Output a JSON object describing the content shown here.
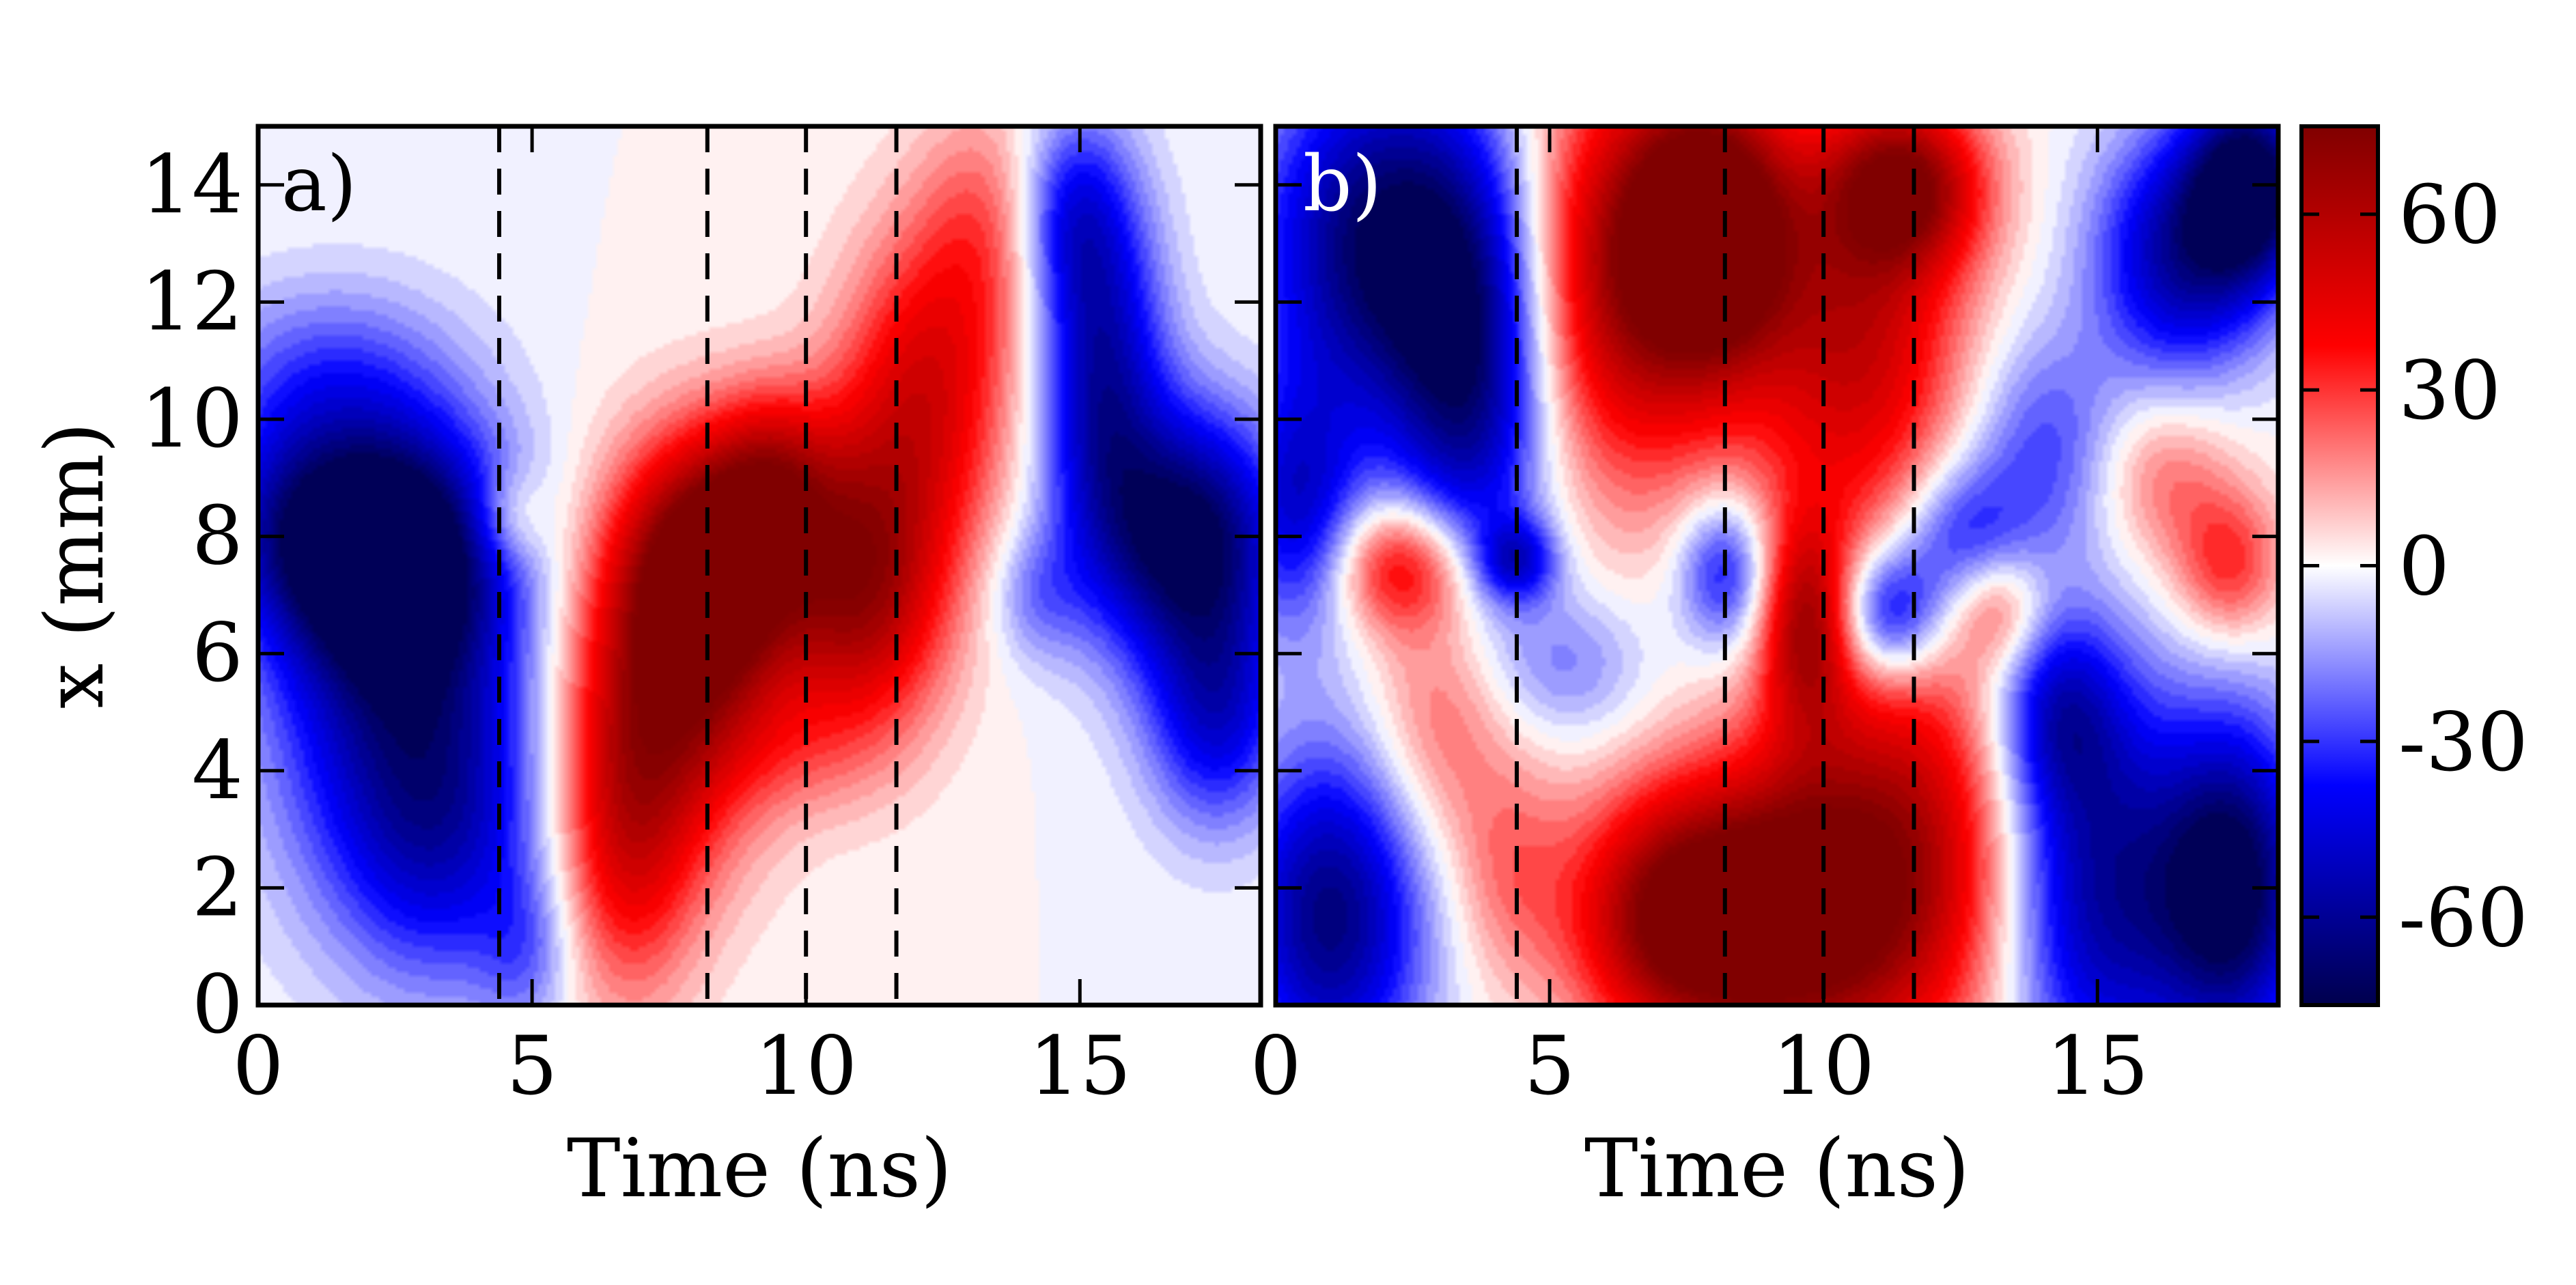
{
  "chart_data": [
    {
      "type": "heatmap",
      "panel_label": "a)",
      "xlabel": "Time (ns)",
      "ylabel": "x (mm)",
      "xlim": [
        0,
        18.3
      ],
      "ylim": [
        0,
        15
      ],
      "xticks": [
        "0",
        "5",
        "10",
        "15"
      ],
      "yticks": [
        "0",
        "2",
        "4",
        "6",
        "8",
        "10",
        "12",
        "14"
      ],
      "dashed_lines_ns": [
        4.4,
        8.2,
        10.0,
        11.65
      ],
      "features": [
        {
          "t": 0.4,
          "x": 8.2,
          "sx": 0.9,
          "sy": 1.2,
          "v": -25
        },
        {
          "t": 2.3,
          "x": 7.8,
          "sx": 1.4,
          "sy": 1.4,
          "v": -75
        },
        {
          "t": 2.6,
          "x": 5.5,
          "sx": 1.7,
          "sy": 2.6,
          "v": -55
        },
        {
          "t": 3.4,
          "x": 2.8,
          "sx": 1.3,
          "sy": 1.8,
          "v": -30
        },
        {
          "t": 1.2,
          "x": 10.6,
          "sx": 1.6,
          "sy": 1.2,
          "v": -25
        },
        {
          "t": 4.9,
          "x": 0.9,
          "sx": 0.6,
          "sy": 1.0,
          "v": -18
        },
        {
          "t": 4.6,
          "x": 8.3,
          "sx": 0.5,
          "sy": 0.6,
          "v": 20
        },
        {
          "t": 6.7,
          "x": 2.8,
          "sx": 0.9,
          "sy": 2.0,
          "v": 38
        },
        {
          "t": 7.5,
          "x": 5.5,
          "sx": 1.3,
          "sy": 2.2,
          "v": 55
        },
        {
          "t": 8.3,
          "x": 7.5,
          "sx": 1.1,
          "sy": 1.5,
          "v": 75
        },
        {
          "t": 9.4,
          "x": 9.0,
          "sx": 0.8,
          "sy": 1.1,
          "v": 35
        },
        {
          "t": 11.0,
          "x": 7.2,
          "sx": 1.1,
          "sy": 1.8,
          "v": 65
        },
        {
          "t": 12.2,
          "x": 10.5,
          "sx": 1.1,
          "sy": 1.9,
          "v": 45
        },
        {
          "t": 13.3,
          "x": 13.3,
          "sx": 0.9,
          "sy": 1.5,
          "v": 22
        },
        {
          "t": 9.6,
          "x": 4.3,
          "sx": 1.2,
          "sy": 0.8,
          "v": 10
        },
        {
          "t": 14.2,
          "x": 7.0,
          "sx": 0.6,
          "sy": 0.8,
          "v": -18
        },
        {
          "t": 15.4,
          "x": 10.8,
          "sx": 0.8,
          "sy": 2.2,
          "v": -55
        },
        {
          "t": 17.0,
          "x": 8.0,
          "sx": 1.2,
          "sy": 1.5,
          "v": -75
        },
        {
          "t": 17.5,
          "x": 5.0,
          "sx": 0.9,
          "sy": 1.4,
          "v": -45
        },
        {
          "t": 14.8,
          "x": 13.5,
          "sx": 0.7,
          "sy": 1.2,
          "v": -32
        }
      ]
    },
    {
      "type": "heatmap",
      "panel_label": "b)",
      "xlabel": "Time (ns)",
      "ylabel": "",
      "xlim": [
        0,
        18.3
      ],
      "ylim": [
        0,
        15
      ],
      "xticks": [
        "0",
        "5",
        "10",
        "15"
      ],
      "yticks": [],
      "dashed_lines_ns": [
        4.4,
        8.2,
        10.0,
        11.65
      ],
      "features": [
        {
          "t": 2.0,
          "x": 13.0,
          "sx": 1.6,
          "sy": 2.2,
          "v": -72
        },
        {
          "t": 1.0,
          "x": 1.5,
          "sx": 1.2,
          "sy": 2.0,
          "v": -65
        },
        {
          "t": 3.6,
          "x": 10.5,
          "sx": 1.0,
          "sy": 2.5,
          "v": -55
        },
        {
          "t": 0.4,
          "x": 8.5,
          "sx": 0.8,
          "sy": 1.5,
          "v": -45
        },
        {
          "t": 2.3,
          "x": 7.5,
          "sx": 0.9,
          "sy": 0.8,
          "v": 45
        },
        {
          "t": 3.0,
          "x": 5.0,
          "sx": 0.9,
          "sy": 1.6,
          "v": 25
        },
        {
          "t": 4.3,
          "x": 2.3,
          "sx": 0.8,
          "sy": 1.4,
          "v": 20
        },
        {
          "t": 4.4,
          "x": 7.6,
          "sx": 0.5,
          "sy": 0.5,
          "v": -40
        },
        {
          "t": 5.4,
          "x": 5.8,
          "sx": 1.0,
          "sy": 0.9,
          "v": -18
        },
        {
          "t": 6.5,
          "x": 12.5,
          "sx": 1.5,
          "sy": 2.5,
          "v": 65
        },
        {
          "t": 8.0,
          "x": 13.3,
          "sx": 1.0,
          "sy": 1.6,
          "v": 75
        },
        {
          "t": 10.6,
          "x": 11.5,
          "sx": 1.4,
          "sy": 2.5,
          "v": 55
        },
        {
          "t": 11.5,
          "x": 14.0,
          "sx": 1.0,
          "sy": 1.0,
          "v": 60
        },
        {
          "t": 9.0,
          "x": 1.5,
          "sx": 1.5,
          "sy": 1.8,
          "v": 75
        },
        {
          "t": 7.0,
          "x": 1.5,
          "sx": 1.2,
          "sy": 1.5,
          "v": 55
        },
        {
          "t": 11.5,
          "x": 2.5,
          "sx": 1.6,
          "sy": 2.5,
          "v": 60
        },
        {
          "t": 9.7,
          "x": 6.5,
          "sx": 0.6,
          "sy": 1.3,
          "v": 55
        },
        {
          "t": 8.2,
          "x": 7.4,
          "sx": 0.6,
          "sy": 0.9,
          "v": -40
        },
        {
          "t": 11.2,
          "x": 6.7,
          "sx": 0.7,
          "sy": 0.8,
          "v": -50
        },
        {
          "t": 12.5,
          "x": 8.0,
          "sx": 0.8,
          "sy": 0.9,
          "v": -35
        },
        {
          "t": 14.0,
          "x": 9.5,
          "sx": 1.0,
          "sy": 1.4,
          "v": -28
        },
        {
          "t": 16.5,
          "x": 12.8,
          "sx": 1.1,
          "sy": 1.5,
          "v": -55
        },
        {
          "t": 17.8,
          "x": 14.0,
          "sx": 0.8,
          "sy": 1.2,
          "v": -75
        },
        {
          "t": 16.2,
          "x": 9.0,
          "sx": 0.9,
          "sy": 1.0,
          "v": 22
        },
        {
          "t": 17.4,
          "x": 7.5,
          "sx": 0.7,
          "sy": 0.9,
          "v": 32
        },
        {
          "t": 13.2,
          "x": 6.8,
          "sx": 0.6,
          "sy": 0.7,
          "v": 25
        },
        {
          "t": 15.0,
          "x": 2.0,
          "sx": 1.3,
          "sy": 2.5,
          "v": -60
        },
        {
          "t": 17.5,
          "x": 2.0,
          "sx": 1.0,
          "sy": 2.0,
          "v": -75
        },
        {
          "t": 14.3,
          "x": 5.0,
          "sx": 0.8,
          "sy": 1.2,
          "v": -40
        }
      ]
    }
  ],
  "colorbar": {
    "vmin": -75,
    "vmax": 75,
    "ticks": [
      "60",
      "30",
      "0",
      "-30",
      "-60"
    ],
    "tick_values": [
      60,
      30,
      0,
      -30,
      -60
    ],
    "colormap": "seismic"
  }
}
